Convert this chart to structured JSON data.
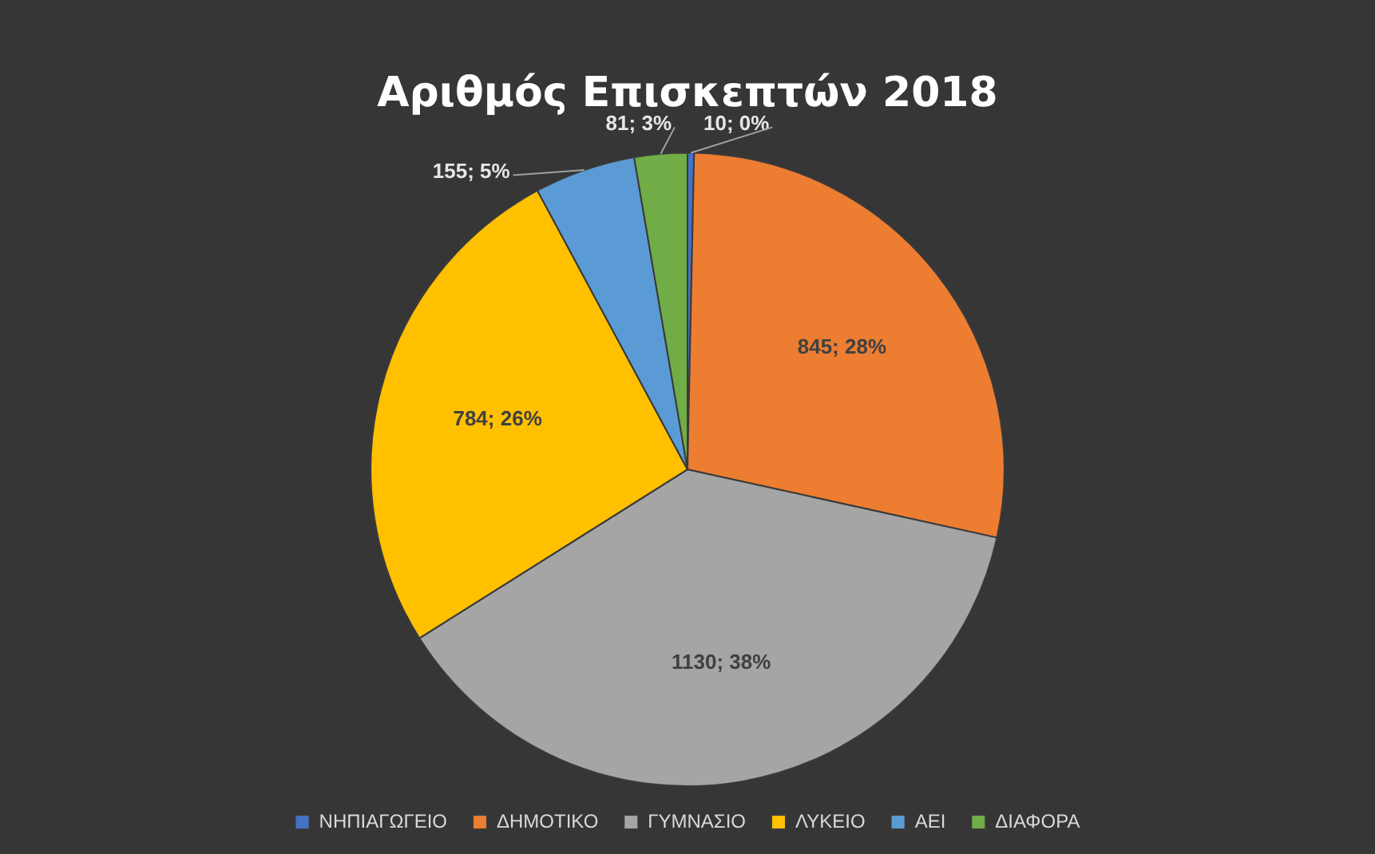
{
  "chart_data": {
    "type": "pie",
    "title": "Αριθμός Επισκεπτών 2018",
    "categories": [
      "ΝΗΠΙΑΓΩΓΕΙΟ",
      "ΔΗΜΟΤΙΚΟ",
      "ΓΥΜΝΑΣΙΟ",
      "ΛΥΚΕΙΟ",
      "ΑΕΙ",
      "ΔΙΑΦΟΡΑ"
    ],
    "values": [
      10,
      845,
      1130,
      784,
      155,
      81
    ],
    "colors": [
      "#4472c4",
      "#ed7d31",
      "#a5a5a5",
      "#ffc000",
      "#5b9bd5",
      "#70ad47"
    ],
    "value_labels": [
      "10; 0%",
      "845; 28%",
      "1130; 38%",
      "784; 26%",
      "155; 5%",
      "81; 3%"
    ],
    "legend": "bottom"
  }
}
